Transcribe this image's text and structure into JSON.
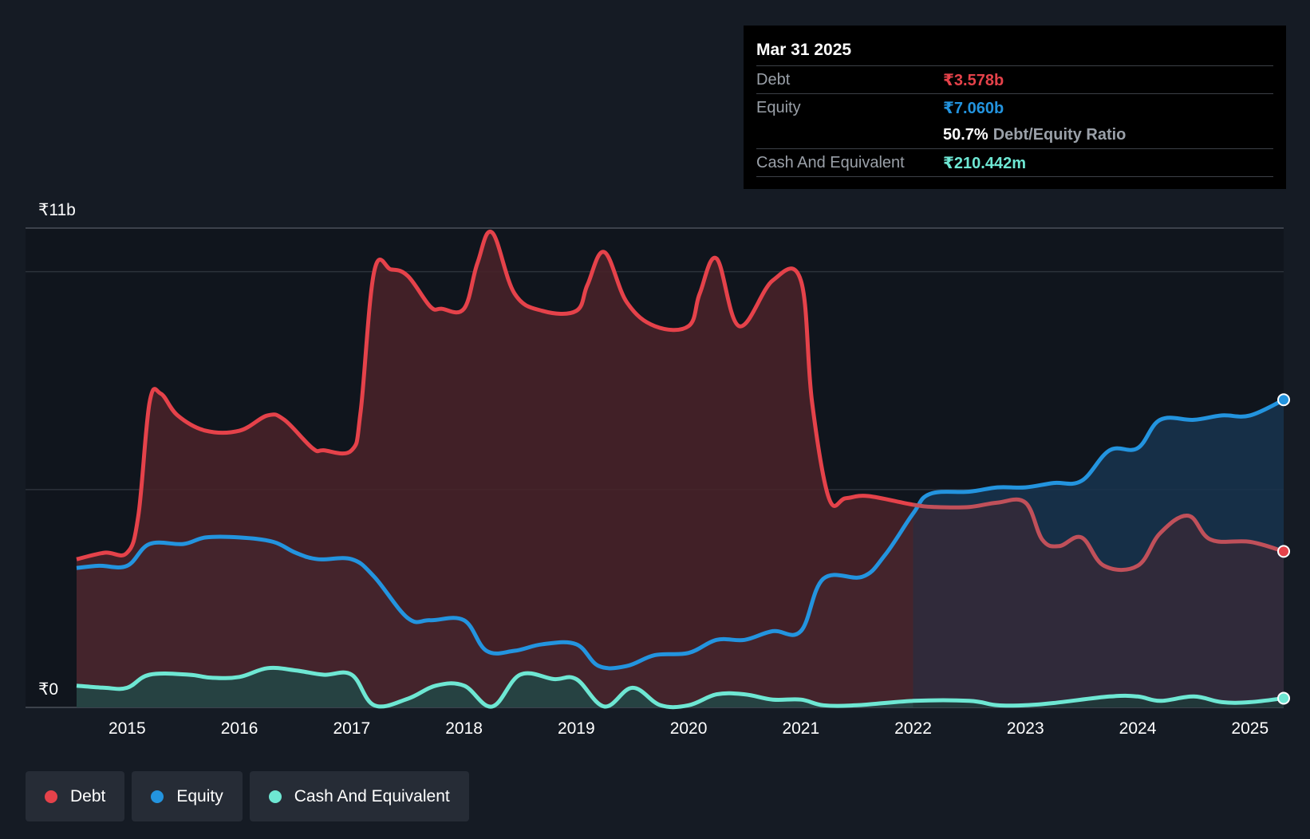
{
  "tooltip": {
    "date": "Mar 31 2025",
    "debt_label": "Debt",
    "debt_value": "₹3.578b",
    "equity_label": "Equity",
    "equity_value": "₹7.060b",
    "ratio_value": "50.7%",
    "ratio_label": "Debt/Equity Ratio",
    "cash_label": "Cash And Equivalent",
    "cash_value": "₹210.442m"
  },
  "legend": {
    "debt": "Debt",
    "equity": "Equity",
    "cash": "Cash And Equivalent"
  },
  "colors": {
    "debt": "#e5424a",
    "equity": "#2394df",
    "cash": "#6ee7d3",
    "background": "#151b24"
  },
  "chart_data": {
    "type": "area",
    "title": "",
    "xlabel": "",
    "ylabel": "",
    "currency_prefix": "₹",
    "y_unit": "b",
    "ylim": [
      0,
      11
    ],
    "y_tick_labels": [
      "₹0",
      "₹11b"
    ],
    "gridlines": [
      0,
      5,
      10,
      11
    ],
    "xlim": [
      2014.55,
      2025.3
    ],
    "x_ticks": [
      2015,
      2016,
      2017,
      2018,
      2019,
      2020,
      2021,
      2022,
      2023,
      2024,
      2025
    ],
    "x_tick_labels": [
      "2015",
      "2016",
      "2017",
      "2018",
      "2019",
      "2020",
      "2021",
      "2022",
      "2023",
      "2024",
      "2025"
    ],
    "highlight_from_x": 2022,
    "series": [
      {
        "name": "Debt",
        "key": "debt",
        "points": [
          [
            2014.55,
            3.4
          ],
          [
            2014.8,
            3.55
          ],
          [
            2015.0,
            3.55
          ],
          [
            2015.1,
            4.4
          ],
          [
            2015.2,
            7.0
          ],
          [
            2015.3,
            7.2
          ],
          [
            2015.45,
            6.7
          ],
          [
            2015.7,
            6.35
          ],
          [
            2016.0,
            6.35
          ],
          [
            2016.25,
            6.7
          ],
          [
            2016.4,
            6.6
          ],
          [
            2016.65,
            5.95
          ],
          [
            2016.75,
            5.9
          ],
          [
            2017.0,
            5.9
          ],
          [
            2017.08,
            6.8
          ],
          [
            2017.2,
            10.0
          ],
          [
            2017.35,
            10.05
          ],
          [
            2017.5,
            9.9
          ],
          [
            2017.7,
            9.2
          ],
          [
            2017.8,
            9.15
          ],
          [
            2018.0,
            9.15
          ],
          [
            2018.12,
            10.2
          ],
          [
            2018.25,
            10.9
          ],
          [
            2018.45,
            9.5
          ],
          [
            2018.7,
            9.1
          ],
          [
            2019.0,
            9.1
          ],
          [
            2019.1,
            9.7
          ],
          [
            2019.25,
            10.45
          ],
          [
            2019.45,
            9.3
          ],
          [
            2019.7,
            8.75
          ],
          [
            2020.0,
            8.75
          ],
          [
            2020.1,
            9.5
          ],
          [
            2020.25,
            10.3
          ],
          [
            2020.45,
            8.75
          ],
          [
            2020.75,
            9.8
          ],
          [
            2021.0,
            9.8
          ],
          [
            2021.1,
            7.0
          ],
          [
            2021.25,
            4.8
          ],
          [
            2021.4,
            4.8
          ],
          [
            2021.6,
            4.85
          ],
          [
            2022.0,
            4.65
          ],
          [
            2022.2,
            4.6
          ],
          [
            2022.5,
            4.6
          ],
          [
            2022.75,
            4.7
          ],
          [
            2023.0,
            4.7
          ],
          [
            2023.15,
            3.85
          ],
          [
            2023.3,
            3.7
          ],
          [
            2023.5,
            3.9
          ],
          [
            2023.7,
            3.25
          ],
          [
            2024.0,
            3.25
          ],
          [
            2024.2,
            4.0
          ],
          [
            2024.45,
            4.4
          ],
          [
            2024.65,
            3.85
          ],
          [
            2025.0,
            3.8
          ],
          [
            2025.3,
            3.58
          ]
        ]
      },
      {
        "name": "Equity",
        "key": "equity",
        "points": [
          [
            2014.55,
            3.2
          ],
          [
            2014.75,
            3.25
          ],
          [
            2015.0,
            3.25
          ],
          [
            2015.2,
            3.75
          ],
          [
            2015.5,
            3.75
          ],
          [
            2015.7,
            3.9
          ],
          [
            2016.0,
            3.9
          ],
          [
            2016.3,
            3.8
          ],
          [
            2016.5,
            3.55
          ],
          [
            2016.7,
            3.4
          ],
          [
            2017.0,
            3.4
          ],
          [
            2017.2,
            3.0
          ],
          [
            2017.5,
            2.05
          ],
          [
            2017.7,
            2.0
          ],
          [
            2018.0,
            2.0
          ],
          [
            2018.2,
            1.3
          ],
          [
            2018.45,
            1.3
          ],
          [
            2018.7,
            1.45
          ],
          [
            2019.0,
            1.45
          ],
          [
            2019.2,
            0.95
          ],
          [
            2019.45,
            0.95
          ],
          [
            2019.7,
            1.2
          ],
          [
            2020.0,
            1.25
          ],
          [
            2020.25,
            1.55
          ],
          [
            2020.5,
            1.55
          ],
          [
            2020.75,
            1.75
          ],
          [
            2021.0,
            1.75
          ],
          [
            2021.2,
            2.95
          ],
          [
            2021.55,
            3.0
          ],
          [
            2021.75,
            3.5
          ],
          [
            2022.0,
            4.45
          ],
          [
            2022.15,
            4.9
          ],
          [
            2022.5,
            4.95
          ],
          [
            2022.75,
            5.05
          ],
          [
            2023.0,
            5.05
          ],
          [
            2023.25,
            5.15
          ],
          [
            2023.5,
            5.2
          ],
          [
            2023.75,
            5.9
          ],
          [
            2024.0,
            5.95
          ],
          [
            2024.2,
            6.6
          ],
          [
            2024.5,
            6.6
          ],
          [
            2024.75,
            6.7
          ],
          [
            2025.0,
            6.7
          ],
          [
            2025.3,
            7.06
          ]
        ]
      },
      {
        "name": "Cash And Equivalent",
        "key": "cash",
        "points": [
          [
            2014.55,
            0.5
          ],
          [
            2014.8,
            0.45
          ],
          [
            2015.0,
            0.45
          ],
          [
            2015.2,
            0.75
          ],
          [
            2015.55,
            0.75
          ],
          [
            2015.75,
            0.68
          ],
          [
            2016.0,
            0.7
          ],
          [
            2016.25,
            0.9
          ],
          [
            2016.5,
            0.85
          ],
          [
            2016.75,
            0.75
          ],
          [
            2017.0,
            0.75
          ],
          [
            2017.2,
            0.05
          ],
          [
            2017.5,
            0.2
          ],
          [
            2017.75,
            0.5
          ],
          [
            2018.0,
            0.5
          ],
          [
            2018.25,
            0.02
          ],
          [
            2018.5,
            0.75
          ],
          [
            2018.8,
            0.65
          ],
          [
            2019.0,
            0.65
          ],
          [
            2019.25,
            0.02
          ],
          [
            2019.5,
            0.45
          ],
          [
            2019.75,
            0.05
          ],
          [
            2020.0,
            0.05
          ],
          [
            2020.25,
            0.3
          ],
          [
            2020.5,
            0.3
          ],
          [
            2020.75,
            0.18
          ],
          [
            2021.0,
            0.18
          ],
          [
            2021.2,
            0.05
          ],
          [
            2021.5,
            0.05
          ],
          [
            2022.0,
            0.15
          ],
          [
            2022.5,
            0.15
          ],
          [
            2022.75,
            0.05
          ],
          [
            2023.0,
            0.05
          ],
          [
            2023.25,
            0.1
          ],
          [
            2023.75,
            0.25
          ],
          [
            2024.0,
            0.25
          ],
          [
            2024.2,
            0.15
          ],
          [
            2024.5,
            0.25
          ],
          [
            2024.75,
            0.12
          ],
          [
            2025.0,
            0.12
          ],
          [
            2025.3,
            0.21
          ]
        ]
      }
    ]
  }
}
